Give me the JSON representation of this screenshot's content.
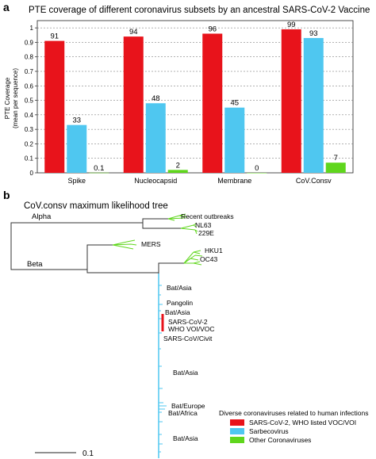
{
  "panel_a": {
    "letter": "a",
    "chart_data": {
      "type": "bar",
      "title": "PTE coverage of different coronavirus subsets by an ancestral SARS-CoV-2 Vaccine",
      "ylabel_line1": "PTE Coverage",
      "ylabel_line2": "(mean per sequence)",
      "ylim": [
        0,
        1.05
      ],
      "yticks": [
        "0",
        "0.1",
        "0.2",
        "0.3",
        "0.4",
        "0.5",
        "0.6",
        "0.7",
        "0.8",
        "0.9",
        "1"
      ],
      "categories": [
        "Spike",
        "Nucleocapsid",
        "Membrane",
        "CoV.Consv"
      ],
      "series": [
        {
          "color": "#e8131b",
          "values": [
            0.91,
            0.94,
            0.96,
            0.99
          ],
          "labels": [
            "91",
            "94",
            "96",
            "99"
          ]
        },
        {
          "color": "#4fc7f0",
          "values": [
            0.33,
            0.48,
            0.45,
            0.93
          ],
          "labels": [
            "33",
            "48",
            "45",
            "93"
          ]
        },
        {
          "color": "#5fd61c",
          "values": [
            0.001,
            0.02,
            0.0,
            0.07
          ],
          "labels": [
            "0.1",
            "2",
            "0",
            "7"
          ]
        }
      ],
      "grid": "horizontal dashed",
      "legend": "none"
    }
  },
  "panel_b": {
    "letter": "b",
    "title": "CoV.consv maximum likelihood tree",
    "clades": {
      "alpha": "Alpha",
      "beta": "Beta"
    },
    "leaves": {
      "recent": "Recent outbreaks",
      "nl63": "NL63",
      "e229": "229E",
      "mers": "MERS",
      "hku1": "HKU1",
      "oc43": "OC43",
      "bat_asia_1": "Bat/Asia",
      "pangolin": "Pangolin",
      "bat_asia_2": "Bat/Asia",
      "sars2": "SARS-CoV-2",
      "who": "WHO VOI/VOC",
      "sars_civit": "SARS-CoV/Civit",
      "bat_asia_3": "Bat/Asia",
      "bat_europe": "Bat/Europe",
      "bat_africa": "Bat/Africa",
      "bat_asia_4": "Bat/Asia"
    },
    "legend": {
      "title": "Diverse coronaviruses related to human infections",
      "items": [
        {
          "label": "SARS-CoV-2, WHO listed VOC/VOI",
          "color": "#e8131b"
        },
        {
          "label": "Sarbecovirus",
          "color": "#4fc7f0"
        },
        {
          "label": "Other Coronaviruses",
          "color": "#5fd61c"
        }
      ]
    },
    "scale_bar": "0.1"
  }
}
